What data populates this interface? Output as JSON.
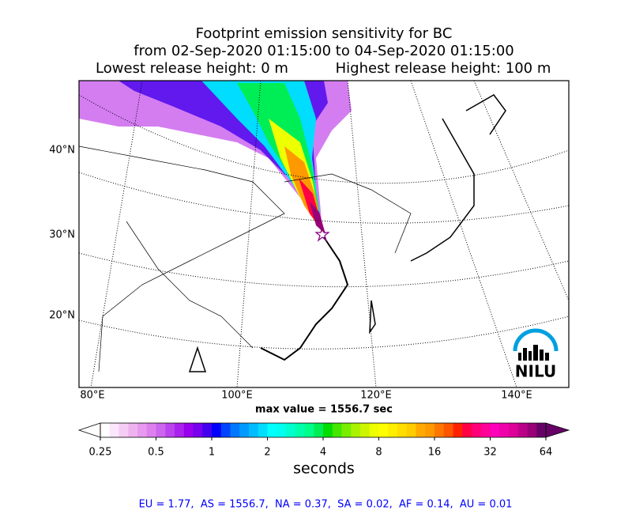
{
  "header": {
    "title_lines": [
      "Footprint emission sensitivity for BC",
      "from 02-Sep-2020 01:15:00 to 04-Sep-2020 01:15:00"
    ],
    "lowest_release": "Lowest release height: 0 m",
    "highest_release": "Highest release height: 100 m"
  },
  "map": {
    "lat_labels": [
      "40°N",
      "30°N",
      "20°N"
    ],
    "lon_labels": [
      "80°E",
      "100°E",
      "120°E",
      "140°E"
    ],
    "max_value": "max value = 1556.7 sec",
    "logo": "NILU"
  },
  "colorbar": {
    "ticks": [
      0.25,
      0.5,
      1,
      2,
      4,
      8,
      16,
      32,
      64
    ],
    "label": "seconds",
    "colors": [
      "#ffffff",
      "#fbe6fb",
      "#f5ccf5",
      "#eeb3ee",
      "#e699ee",
      "#dd80ee",
      "#cc66ee",
      "#bb44ee",
      "#aa22ee",
      "#9900ee",
      "#7700ee",
      "#4400ee",
      "#0000ff",
      "#0044ff",
      "#0077ff",
      "#0099ff",
      "#00bbff",
      "#00ddff",
      "#00ffff",
      "#00ffee",
      "#00ffcc",
      "#00ffaa",
      "#00ff88",
      "#00ee55",
      "#00dd00",
      "#44e600",
      "#77ee00",
      "#aaf200",
      "#ccf600",
      "#eeff00",
      "#ffff00",
      "#ffee00",
      "#ffdd00",
      "#ffcc00",
      "#ffaa00",
      "#ff9900",
      "#ff7700",
      "#ff5500",
      "#ff2200",
      "#ff0044",
      "#ff0077",
      "#ff0099",
      "#ff00bb",
      "#ee00aa",
      "#dd0099",
      "#bb0088",
      "#990077",
      "#660066"
    ]
  },
  "footer": {
    "stats": "EU = 1.77,  AS = 1556.7,  NA = 0.37,  SA = 0.02,  AF = 0.14,  AU = 0.01"
  }
}
